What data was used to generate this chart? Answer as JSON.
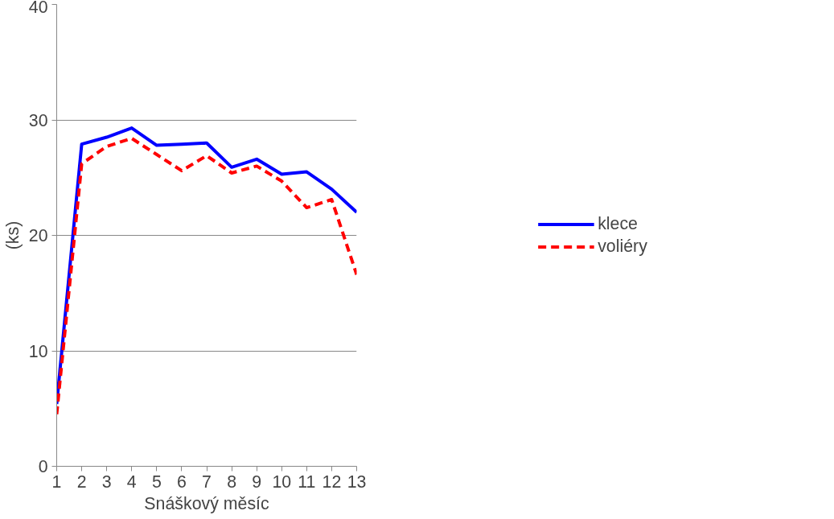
{
  "chart_data": {
    "type": "line",
    "xlabel": "Snáškový měsíc",
    "ylabel": "(ks)",
    "x": [
      1,
      2,
      3,
      4,
      5,
      6,
      7,
      8,
      9,
      10,
      11,
      12,
      13
    ],
    "xlim": [
      1,
      13
    ],
    "xticks": [
      1,
      2,
      3,
      4,
      5,
      6,
      7,
      8,
      9,
      10,
      11,
      12,
      13
    ],
    "ylim": [
      0,
      40
    ],
    "yticks": [
      0,
      10,
      20,
      30,
      40
    ],
    "grid": "y",
    "legend": "right",
    "series": [
      {
        "name": "klece",
        "color": "#0000ff",
        "line_style": "solid",
        "values": [
          5.4,
          27.9,
          28.5,
          29.3,
          27.8,
          27.9,
          28.0,
          25.9,
          26.6,
          25.3,
          25.5,
          24.0,
          22.0
        ]
      },
      {
        "name": "voliéry",
        "color": "#ff0000",
        "line_style": "dashed",
        "values": [
          4.5,
          26.2,
          27.7,
          28.4,
          27.0,
          25.6,
          26.9,
          25.4,
          26.0,
          24.7,
          22.4,
          23.1,
          16.6
        ]
      }
    ]
  }
}
